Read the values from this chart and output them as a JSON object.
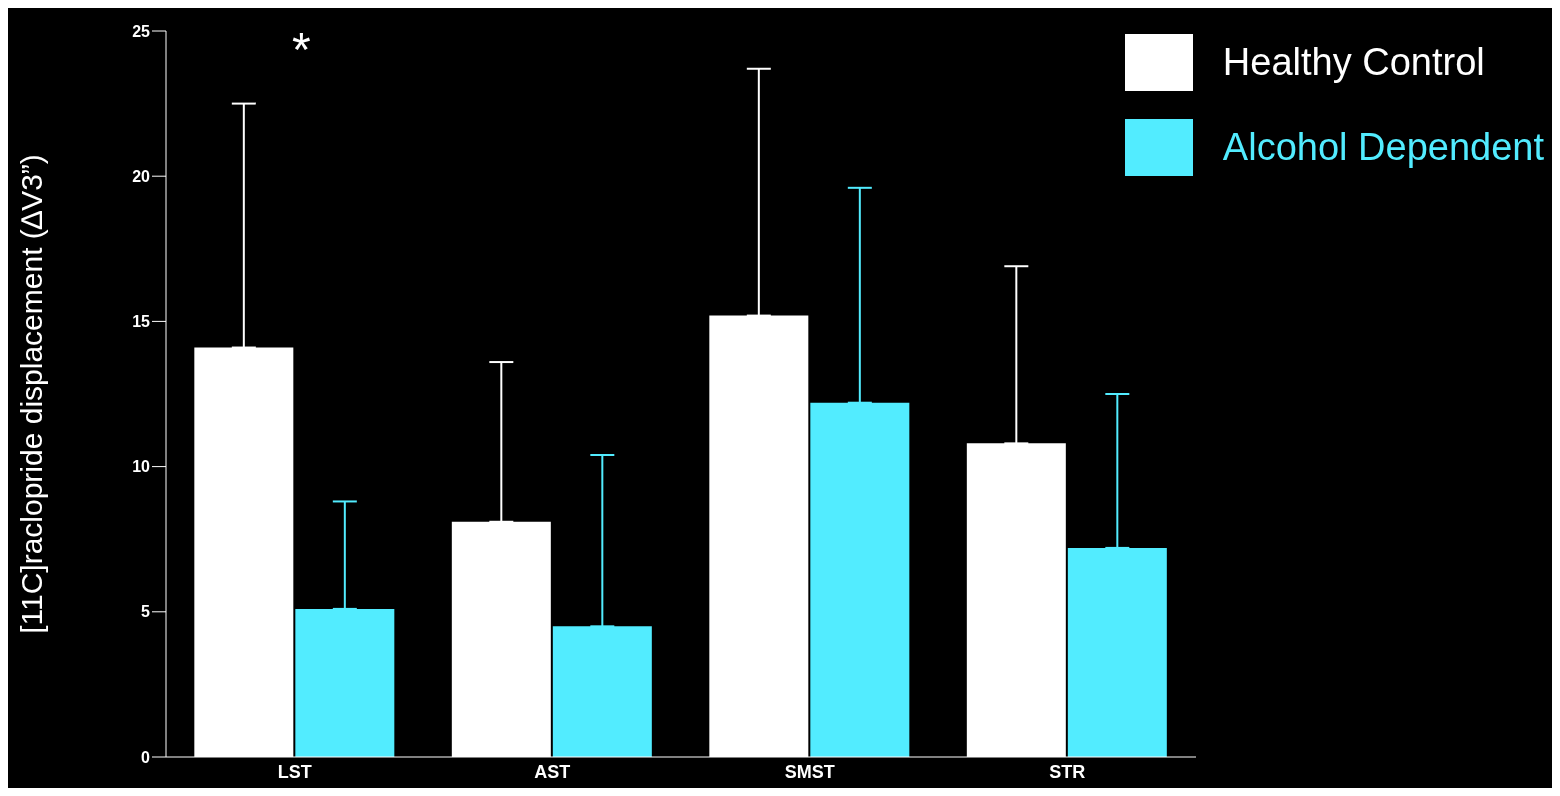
{
  "chart_data": {
    "type": "bar",
    "ylabel": "[11C]raclopride displacement (∆V3”)",
    "categories": [
      "LST",
      "AST",
      "SMST",
      "STR"
    ],
    "series": [
      {
        "name": "Healthy Control",
        "color": "#ffffff",
        "values": [
          14.1,
          8.1,
          15.2,
          10.8
        ],
        "errors": [
          [
            14.1,
            22.5
          ],
          [
            8.1,
            13.6
          ],
          [
            15.2,
            23.7
          ],
          [
            10.8,
            16.9
          ]
        ]
      },
      {
        "name": "Alcohol Dependent",
        "color": "#52ecff",
        "values": [
          5.1,
          4.5,
          12.2,
          7.2
        ],
        "errors": [
          [
            5.1,
            8.8
          ],
          [
            4.5,
            10.4
          ],
          [
            12.2,
            19.6
          ],
          [
            7.2,
            12.5
          ]
        ]
      }
    ],
    "ylim": [
      0,
      25
    ],
    "yticks": [
      0,
      5,
      10,
      15,
      20,
      25
    ],
    "grid": false,
    "legend": "top right",
    "annotations": [
      "*"
    ]
  }
}
